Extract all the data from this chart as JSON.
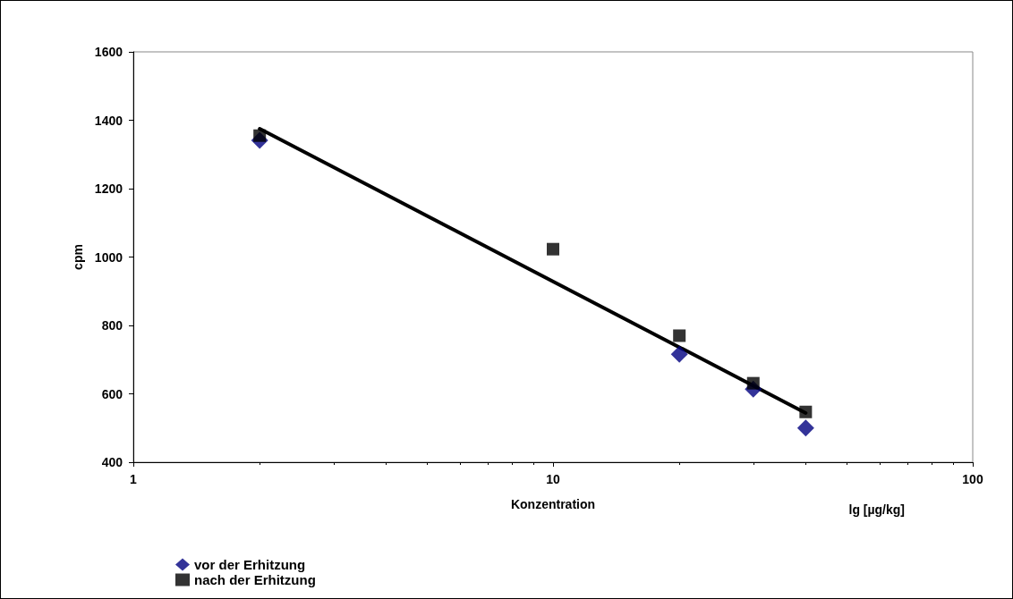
{
  "chart_data": {
    "type": "scatter",
    "xlabel": "Konzentration",
    "ylabel": "cpm",
    "annotations": [
      "lg [µg/kg]"
    ],
    "log": "x",
    "xlim": [
      1,
      100
    ],
    "xticks": [
      1,
      10,
      100
    ],
    "ylim": [
      400,
      1600
    ],
    "yticks": [
      400,
      600,
      800,
      1000,
      1200,
      1400,
      1600
    ],
    "grid": false,
    "legend": "bottom left",
    "series": [
      {
        "name": "vor der Erhitzung",
        "color": "#000080",
        "marker": "diamond",
        "x": [
          2,
          10,
          20,
          30,
          40
        ],
        "values": [
          1341,
          null,
          716,
          614,
          500
        ]
      },
      {
        "name": "nach der Erhitzung",
        "color": "#000000",
        "marker": "square",
        "x": [
          2,
          10,
          20,
          30,
          40
        ],
        "values": [
          1355,
          1023,
          770,
          631,
          547
        ]
      },
      {
        "type": "line",
        "color": "#000000",
        "marker": "none",
        "x": [
          2,
          40
        ],
        "values": [
          1375,
          544
        ]
      }
    ]
  }
}
